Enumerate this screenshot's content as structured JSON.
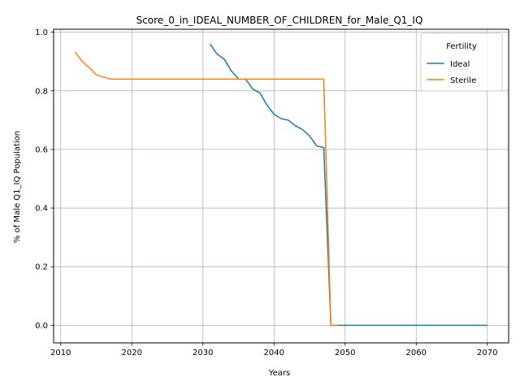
{
  "chart_data": {
    "type": "line",
    "title": "Score_0_in_IDEAL_NUMBER_OF_CHILDREN_for_Male_Q1_IQ",
    "xlabel": "Years",
    "ylabel": "% of Male Q1_IQ Population",
    "xlim": [
      2009,
      2073
    ],
    "ylim": [
      -0.06,
      1.01
    ],
    "xticks": [
      2010,
      2020,
      2030,
      2040,
      2050,
      2060,
      2070
    ],
    "yticks": [
      0.0,
      0.2,
      0.4,
      0.6,
      0.8,
      1.0
    ],
    "xtick_labels": [
      "2010",
      "2020",
      "2030",
      "2040",
      "2050",
      "2060",
      "2070"
    ],
    "ytick_labels": [
      "0.0",
      "0.2",
      "0.4",
      "0.6",
      "0.8",
      "1.0"
    ],
    "grid": true,
    "legend": {
      "title": "Fertility",
      "position": "top-right"
    },
    "series": [
      {
        "name": "Ideal",
        "color": "#1f77b4",
        "x": [
          2031,
          2032,
          2033,
          2034,
          2035,
          2036,
          2037,
          2038,
          2039,
          2040,
          2041,
          2042,
          2043,
          2044,
          2045,
          2046,
          2047,
          2048,
          2049,
          2050,
          2055,
          2060,
          2065,
          2070
        ],
        "values": [
          0.96,
          0.925,
          0.908,
          0.868,
          0.84,
          0.84,
          0.806,
          0.793,
          0.752,
          0.72,
          0.705,
          0.7,
          0.681,
          0.668,
          0.646,
          0.612,
          0.606,
          0.0,
          0.0,
          0.0,
          0.0,
          0.0,
          0.0,
          0.0
        ]
      },
      {
        "name": "Sterile",
        "color": "#ff7f0e",
        "x": [
          2012,
          2013,
          2014,
          2015,
          2016,
          2017,
          2018,
          2020,
          2025,
          2030,
          2035,
          2040,
          2045,
          2047,
          2048,
          2049
        ],
        "values": [
          0.933,
          0.901,
          0.879,
          0.855,
          0.847,
          0.84,
          0.84,
          0.84,
          0.84,
          0.84,
          0.84,
          0.84,
          0.84,
          0.84,
          0.0,
          0.0
        ]
      }
    ]
  }
}
